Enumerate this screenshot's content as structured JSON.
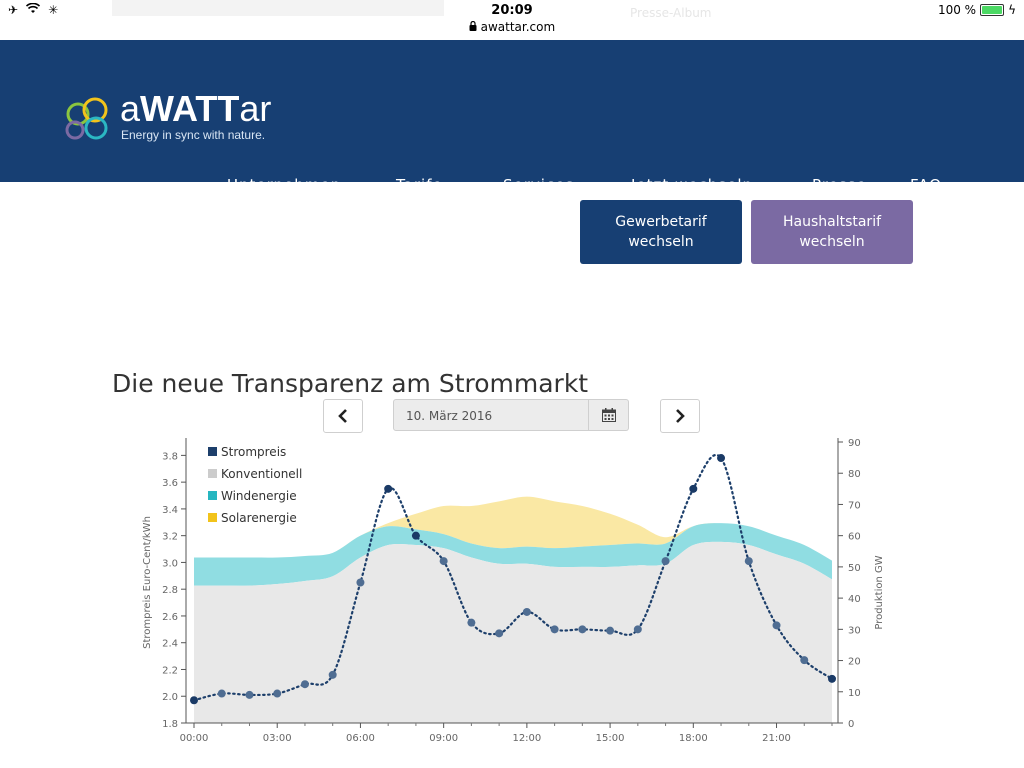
{
  "status_bar": {
    "time": "20:09",
    "url": "awattar.com",
    "battery": "100 %",
    "ghost_text": "Presse-Album"
  },
  "header": {
    "logo_a": "a",
    "logo_watt": "WATT",
    "logo_ar": "ar",
    "tagline": "Energy in sync with nature."
  },
  "nav": {
    "items": [
      {
        "label": "Unternehmen",
        "dropdown": true
      },
      {
        "label": "Tarife",
        "dropdown": true
      },
      {
        "label": "Services",
        "dropdown": true
      },
      {
        "label": "Jetzt wechseln",
        "dropdown": true
      },
      {
        "label": "Presse",
        "dropdown": false
      },
      {
        "label": "FAQ",
        "dropdown": false
      }
    ],
    "chevron": "»"
  },
  "cta": {
    "gewerbe_line1": "Gewerbetarif",
    "gewerbe_line2": "wechseln",
    "haushalt_line1": "Haushaltstarif",
    "haushalt_line2": "wechseln"
  },
  "section_title": "Die neue Transparenz am Strommarkt",
  "date_picker": {
    "value": "10. März 2016",
    "prev_icon": "chevron-left-icon",
    "next_icon": "chevron-right-icon",
    "calendar_icon": "calendar-icon"
  },
  "colors": {
    "header_bg": "#173f73",
    "strompreis": "#1d3f6b",
    "konventionell": "#e8e8e8",
    "wind": "#90dde2",
    "solar": "#fae8a4",
    "haushalt": "#7b6aa3"
  },
  "chart_data": {
    "type": "area",
    "legend": [
      "Strompreis",
      "Konventionell",
      "Windenergie",
      "Solarenergie"
    ],
    "legend_placement": "top-left",
    "ylabel_left": "Strompreis Euro-Cent/kWh",
    "ylabel_right": "Produktion GW",
    "y_left_ticks": [
      "1.8",
      "2.0",
      "2.2",
      "2.4",
      "2.6",
      "2.8",
      "3.0",
      "3.2",
      "3.4",
      "3.6",
      "3.8"
    ],
    "y_left_range": [
      1.8,
      3.9
    ],
    "y_right_ticks": [
      "0",
      "10",
      "20",
      "30",
      "40",
      "50",
      "60",
      "70",
      "80",
      "90"
    ],
    "y_right_range": [
      0,
      90
    ],
    "x_ticks": [
      "00:00",
      "03:00",
      "06:00",
      "09:00",
      "12:00",
      "15:00",
      "18:00",
      "21:00"
    ],
    "hours": [
      0,
      1,
      2,
      3,
      4,
      5,
      6,
      7,
      8,
      9,
      10,
      11,
      12,
      13,
      14,
      15,
      16,
      17,
      18,
      19,
      20,
      21,
      22,
      23
    ],
    "strompreis": [
      1.97,
      2.02,
      2.01,
      2.02,
      2.09,
      2.16,
      2.85,
      3.55,
      3.2,
      3.01,
      2.55,
      2.47,
      2.63,
      2.5,
      2.5,
      2.49,
      2.5,
      3.01,
      3.55,
      3.78,
      3.01,
      2.53,
      2.27,
      2.13
    ],
    "konventionell": [
      44,
      44,
      44,
      44.5,
      45.5,
      47,
      53,
      57,
      57,
      56,
      53,
      51,
      51,
      50,
      50,
      50,
      50.5,
      51,
      57,
      58,
      57,
      54,
      51,
      46
    ],
    "wind": [
      9,
      9,
      9,
      8.5,
      8,
      7.5,
      7,
      6,
      5,
      4.5,
      4.5,
      5,
      5.5,
      6,
      6.5,
      7,
      7,
      6.5,
      6,
      6,
      6,
      6,
      6,
      6
    ],
    "solar": [
      0,
      0,
      0,
      0,
      0,
      0,
      0,
      1,
      5,
      9,
      12,
      15,
      16,
      15,
      13,
      10,
      6,
      2,
      0,
      0,
      0,
      0,
      0,
      0
    ]
  }
}
